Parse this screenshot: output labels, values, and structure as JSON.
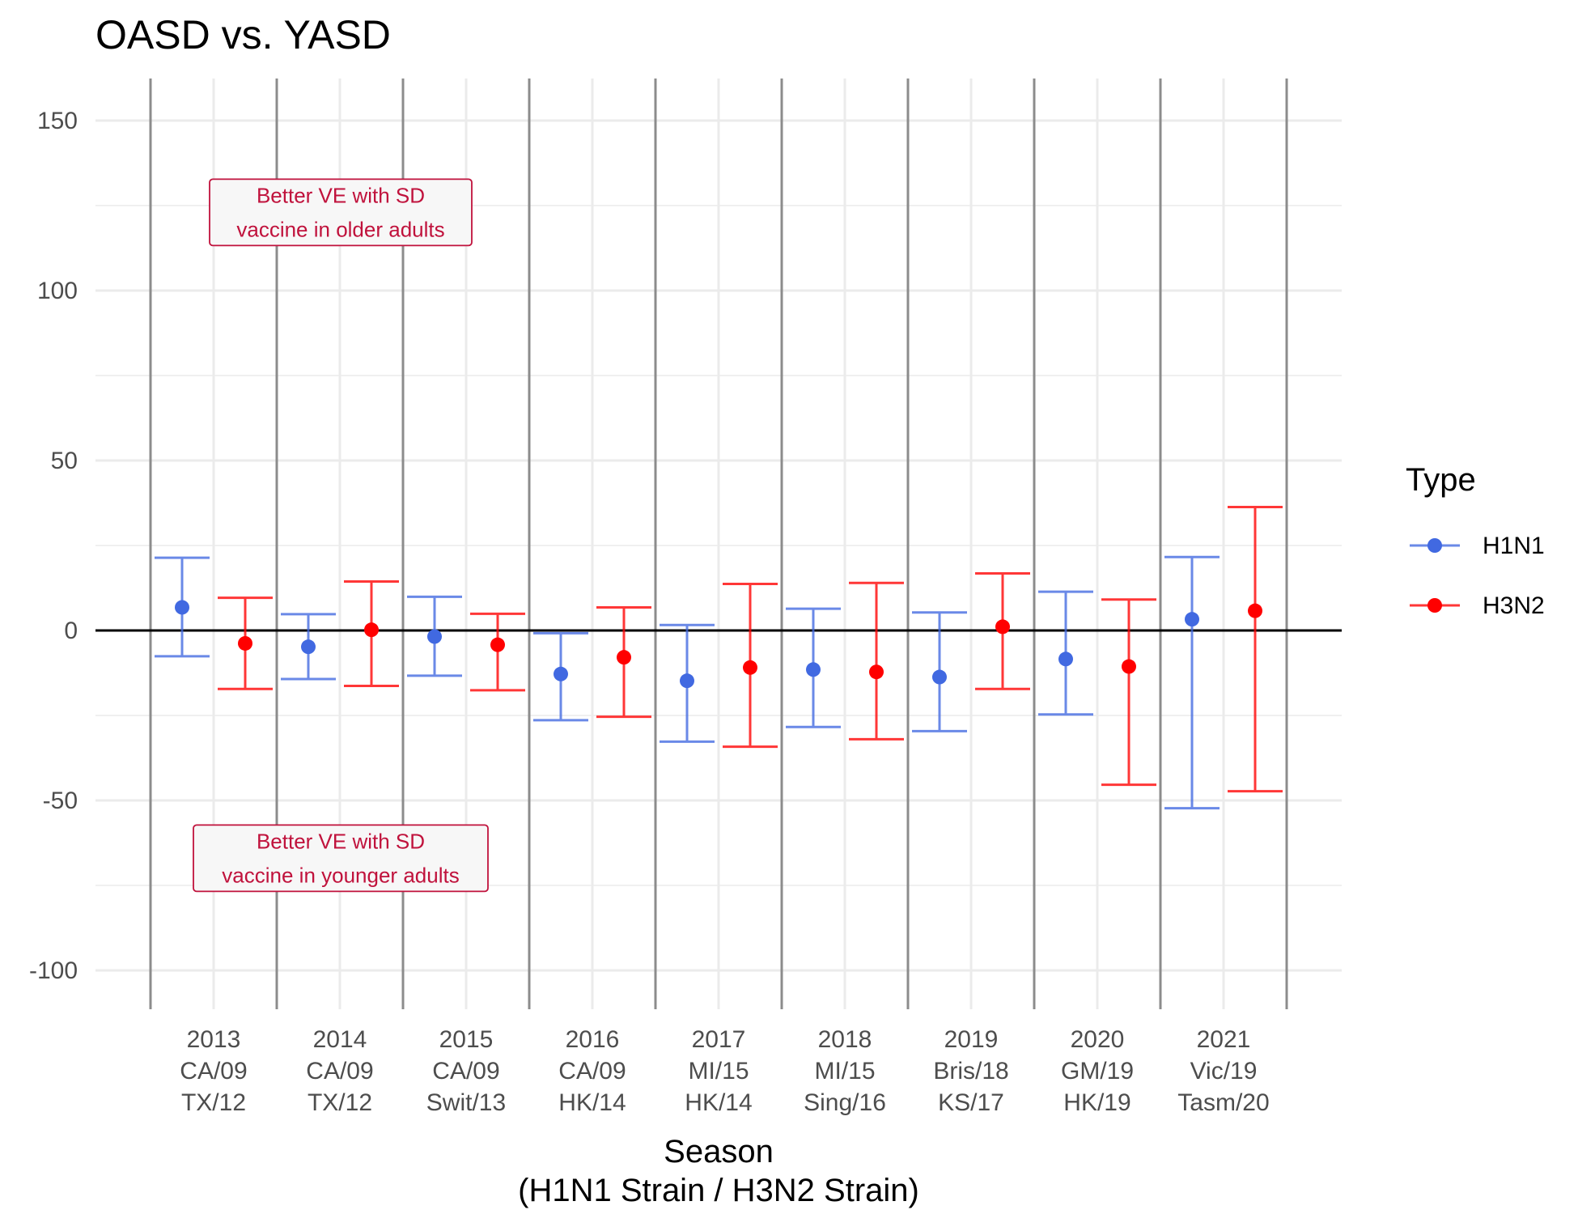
{
  "chart_data": {
    "type": "scatter",
    "subtype": "point-with-error-bars",
    "title": "OASD vs. YASD",
    "xlabel_lines": [
      "Season",
      "(H1N1 Strain / H3N2 Strain)"
    ],
    "ylabel": "",
    "ylim": [
      -110,
      162
    ],
    "yticks": [
      150,
      100,
      50,
      0,
      -50,
      -100
    ],
    "grid": true,
    "reference_line_y": 0,
    "categories": [
      {
        "year": "2013",
        "h1n1": "CA/09",
        "h3n2": "TX/12"
      },
      {
        "year": "2014",
        "h1n1": "CA/09",
        "h3n2": "TX/12"
      },
      {
        "year": "2015",
        "h1n1": "CA/09",
        "h3n2": "Swit/13"
      },
      {
        "year": "2016",
        "h1n1": "CA/09",
        "h3n2": "HK/14"
      },
      {
        "year": "2017",
        "h1n1": "MI/15",
        "h3n2": "HK/14"
      },
      {
        "year": "2018",
        "h1n1": "MI/15",
        "h3n2": "Sing/16"
      },
      {
        "year": "2019",
        "h1n1": "Bris/18",
        "h3n2": "KS/17"
      },
      {
        "year": "2020",
        "h1n1": "GM/19",
        "h3n2": "HK/19"
      },
      {
        "year": "2021",
        "h1n1": "Vic/19",
        "h3n2": "Tasm/20"
      }
    ],
    "series": [
      {
        "name": "H1N1",
        "color": "#4169e1",
        "estimate": [
          6.8,
          -4.8,
          -1.8,
          -12.8,
          -14.8,
          -11.5,
          -13.7,
          -8.4,
          3.3
        ],
        "lower": [
          -7.6,
          -14.3,
          -13.3,
          -26.4,
          -32.7,
          -28.4,
          -29.6,
          -24.7,
          -52.3
        ],
        "upper": [
          21.4,
          4.8,
          9.9,
          -0.8,
          1.6,
          6.4,
          5.3,
          11.4,
          21.6
        ]
      },
      {
        "name": "H3N2",
        "color": "#ff0000",
        "estimate": [
          -3.8,
          0.2,
          -4.2,
          -7.9,
          -10.9,
          -12.2,
          1.1,
          -10.6,
          5.8
        ],
        "lower": [
          -17.2,
          -16.3,
          -17.6,
          -25.4,
          -34.2,
          -32.0,
          -17.2,
          -45.4,
          -47.3
        ],
        "upper": [
          9.6,
          14.4,
          4.9,
          6.8,
          13.7,
          14.0,
          16.8,
          9.1,
          36.3
        ]
      }
    ],
    "legend": {
      "title": "Type",
      "position": "right"
    },
    "annotations": [
      {
        "lines": [
          "Better VE with SD",
          "vaccine in older adults"
        ],
        "x_category": "2014",
        "y": 123
      },
      {
        "lines": [
          "Better VE with SD",
          "vaccine in younger adults"
        ],
        "x_category": "2014",
        "y": -67
      }
    ]
  }
}
